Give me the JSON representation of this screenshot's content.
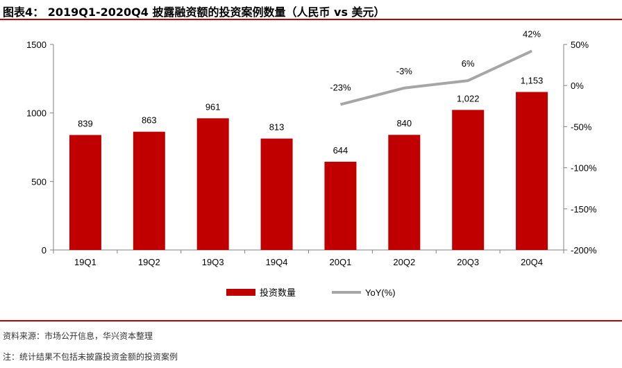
{
  "title": "图表4： 2019Q1-2020Q4 披露融资额的投资案例数量（人民币 vs 美元）",
  "source": "资料来源：市场公开信息，华兴资本整理",
  "note": "注：统计结果不包括未披露投资金额的投资案例",
  "colors": {
    "bar": "#c00000",
    "line": "#a6a6a6",
    "rule": "#c00000"
  },
  "chart_data": {
    "type": "bar+line",
    "categories": [
      "19Q1",
      "19Q2",
      "19Q3",
      "19Q4",
      "20Q1",
      "20Q2",
      "20Q3",
      "20Q4"
    ],
    "series": [
      {
        "name": "投资数量",
        "kind": "bar",
        "axis": "left",
        "values": [
          839,
          863,
          961,
          813,
          644,
          840,
          1022,
          1153
        ],
        "labels": [
          "839",
          "863",
          "961",
          "813",
          "644",
          "840",
          "1,022",
          "1,153"
        ]
      },
      {
        "name": "YoY(%)",
        "kind": "line",
        "axis": "right",
        "values": [
          null,
          null,
          null,
          null,
          -23,
          -3,
          6,
          42
        ],
        "labels": [
          "",
          "",
          "",
          "",
          "-23%",
          "-3%",
          "6%",
          "42%"
        ]
      }
    ],
    "y_left": {
      "min": 0,
      "max": 1500,
      "ticks": [
        0,
        500,
        1000,
        1500
      ],
      "tick_labels": [
        "0",
        "500",
        "1000",
        "1500"
      ]
    },
    "y_right": {
      "min": -200,
      "max": 50,
      "ticks": [
        -200,
        -150,
        -100,
        -50,
        0,
        50
      ],
      "tick_labels": [
        "-200%",
        "-150%",
        "-100%",
        "-50%",
        "0%",
        "50%"
      ]
    },
    "legend": {
      "position": "bottom",
      "entries": [
        "投资数量",
        "YoY(%)"
      ]
    },
    "grid": false
  }
}
